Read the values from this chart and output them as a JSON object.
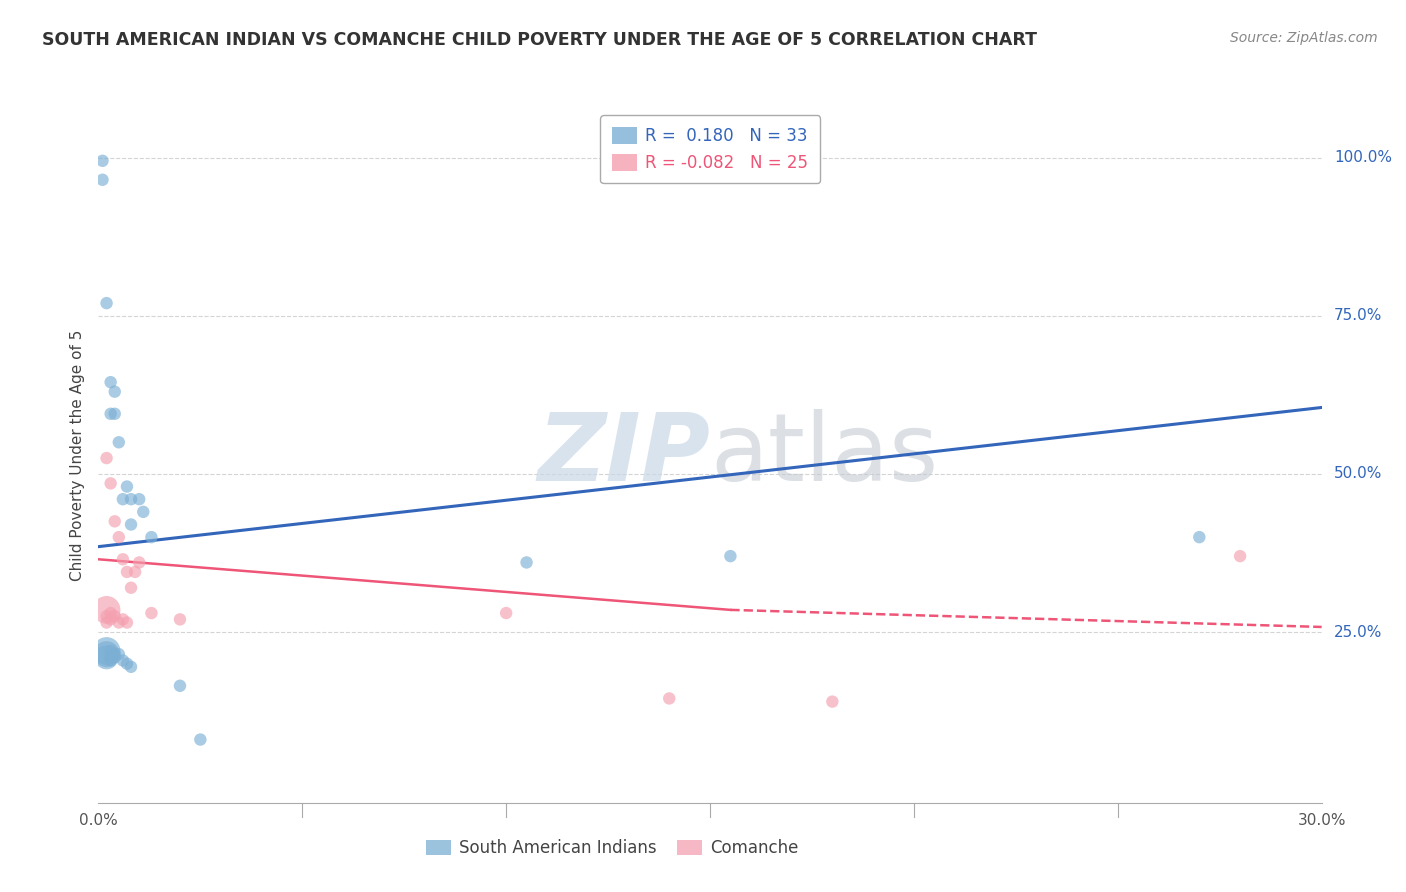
{
  "title": "SOUTH AMERICAN INDIAN VS COMANCHE CHILD POVERTY UNDER THE AGE OF 5 CORRELATION CHART",
  "source": "Source: ZipAtlas.com",
  "ylabel": "Child Poverty Under the Age of 5",
  "xlim": [
    0.0,
    0.3
  ],
  "ylim": [
    -0.02,
    1.08
  ],
  "yticks": [
    0.0,
    0.25,
    0.5,
    0.75,
    1.0
  ],
  "ytick_labels": [
    "",
    "25.0%",
    "50.0%",
    "75.0%",
    "100.0%"
  ],
  "xticks": [
    0.0,
    0.05,
    0.1,
    0.15,
    0.2,
    0.25,
    0.3
  ],
  "xtick_labels": [
    "0.0%",
    "",
    "",
    "",
    "",
    "",
    "30.0%"
  ],
  "legend_entries": [
    {
      "label": "South American Indians",
      "color": "#7bafd4",
      "R": "0.180",
      "N": "33"
    },
    {
      "label": "Comanche",
      "color": "#f4a0b0",
      "R": "-0.082",
      "N": "25"
    }
  ],
  "blue_scatter": [
    [
      0.001,
      0.995
    ],
    [
      0.001,
      0.965
    ],
    [
      0.002,
      0.77
    ],
    [
      0.003,
      0.645
    ],
    [
      0.003,
      0.595
    ],
    [
      0.004,
      0.63
    ],
    [
      0.004,
      0.595
    ],
    [
      0.005,
      0.55
    ],
    [
      0.006,
      0.46
    ],
    [
      0.007,
      0.48
    ],
    [
      0.008,
      0.46
    ],
    [
      0.008,
      0.42
    ],
    [
      0.01,
      0.46
    ],
    [
      0.011,
      0.44
    ],
    [
      0.013,
      0.4
    ],
    [
      0.002,
      0.22
    ],
    [
      0.002,
      0.215
    ],
    [
      0.002,
      0.21
    ],
    [
      0.003,
      0.22
    ],
    [
      0.003,
      0.21
    ],
    [
      0.003,
      0.205
    ],
    [
      0.004,
      0.215
    ],
    [
      0.004,
      0.21
    ],
    [
      0.005,
      0.215
    ],
    [
      0.006,
      0.205
    ],
    [
      0.007,
      0.2
    ],
    [
      0.008,
      0.195
    ],
    [
      0.02,
      0.165
    ],
    [
      0.025,
      0.08
    ],
    [
      0.105,
      0.36
    ],
    [
      0.155,
      0.37
    ],
    [
      0.27,
      0.4
    ]
  ],
  "blue_scatter_sizes": [
    80,
    80,
    80,
    80,
    80,
    80,
    80,
    80,
    80,
    80,
    80,
    80,
    80,
    80,
    80,
    400,
    350,
    300,
    80,
    80,
    80,
    80,
    80,
    80,
    80,
    80,
    80,
    80,
    80,
    80,
    80,
    80
  ],
  "pink_scatter": [
    [
      0.002,
      0.525
    ],
    [
      0.003,
      0.485
    ],
    [
      0.004,
      0.425
    ],
    [
      0.005,
      0.4
    ],
    [
      0.006,
      0.365
    ],
    [
      0.007,
      0.345
    ],
    [
      0.008,
      0.32
    ],
    [
      0.009,
      0.345
    ],
    [
      0.01,
      0.36
    ],
    [
      0.013,
      0.28
    ],
    [
      0.002,
      0.285
    ],
    [
      0.002,
      0.275
    ],
    [
      0.002,
      0.265
    ],
    [
      0.003,
      0.28
    ],
    [
      0.003,
      0.27
    ],
    [
      0.004,
      0.275
    ],
    [
      0.005,
      0.265
    ],
    [
      0.006,
      0.27
    ],
    [
      0.007,
      0.265
    ],
    [
      0.02,
      0.27
    ],
    [
      0.1,
      0.28
    ],
    [
      0.14,
      0.145
    ],
    [
      0.18,
      0.14
    ],
    [
      0.28,
      0.37
    ]
  ],
  "pink_scatter_sizes": [
    80,
    80,
    80,
    80,
    80,
    80,
    80,
    80,
    80,
    80,
    400,
    80,
    80,
    80,
    80,
    80,
    80,
    80,
    80,
    80,
    80,
    80,
    80,
    80
  ],
  "blue_line": {
    "x0": 0.0,
    "y0": 0.385,
    "x1": 0.3,
    "y1": 0.605
  },
  "pink_line_solid": {
    "x0": 0.0,
    "y0": 0.365,
    "x1": 0.155,
    "y1": 0.285
  },
  "pink_line_dashed": {
    "x0": 0.155,
    "y0": 0.285,
    "x1": 0.3,
    "y1": 0.258
  },
  "blue_color": "#7bafd4",
  "pink_color": "#f4a0b0",
  "blue_line_color": "#3366bb",
  "pink_line_color": "#ee5577",
  "background_color": "#ffffff",
  "watermark_left": "ZIP",
  "watermark_right": "atlas",
  "watermark_color_left": "#c8d8e8",
  "watermark_color_right": "#c0c8d0",
  "grid_color": "#d0d0d0"
}
